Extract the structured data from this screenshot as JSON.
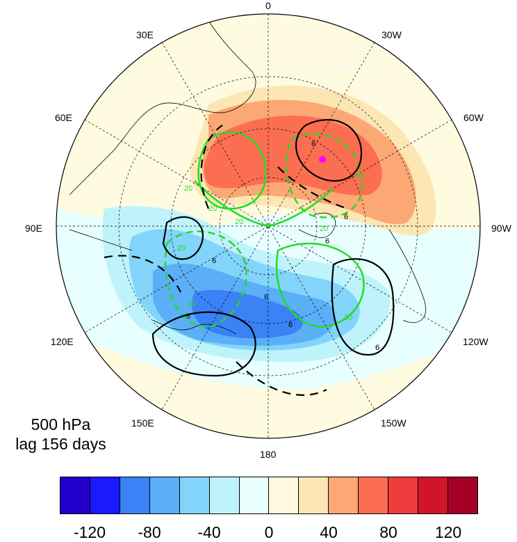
{
  "map": {
    "projection": "north-polar-stereographic",
    "longitude_labels": [
      {
        "id": "lon-0",
        "text": "0"
      },
      {
        "id": "lon-30w",
        "text": "30W"
      },
      {
        "id": "lon-60w",
        "text": "60W"
      },
      {
        "id": "lon-90w",
        "text": "90W"
      },
      {
        "id": "lon-120w",
        "text": "120W"
      },
      {
        "id": "lon-150w",
        "text": "150W"
      },
      {
        "id": "lon-180",
        "text": "180"
      },
      {
        "id": "lon-150e",
        "text": "150E"
      },
      {
        "id": "lon-120e",
        "text": "120E"
      },
      {
        "id": "lon-90e",
        "text": "90E"
      },
      {
        "id": "lon-60e",
        "text": "60E"
      },
      {
        "id": "lon-30e",
        "text": "30E"
      }
    ],
    "green_contour_labels": [
      "20",
      "20",
      "20",
      "20",
      "20",
      "20",
      "20",
      "20"
    ],
    "black_contour_labels": [
      "6",
      "6",
      "6",
      "6",
      "6",
      "6",
      "6",
      "6"
    ],
    "marker_color": "#ff00ff"
  },
  "caption": {
    "level": "500 hPa",
    "lag": "lag 156 days"
  },
  "colorbar": {
    "colors": [
      "#2200cc",
      "#1a1aff",
      "#3a82f5",
      "#5aaff7",
      "#82d4fa",
      "#bff3fc",
      "#e8ffff",
      "#fffbe0",
      "#fce6b4",
      "#fca874",
      "#fc6e52",
      "#f03c3c",
      "#d2142a",
      "#a50026"
    ],
    "labels": [
      "-120",
      "-80",
      "-40",
      "0",
      "40",
      "80",
      "120"
    ]
  }
}
